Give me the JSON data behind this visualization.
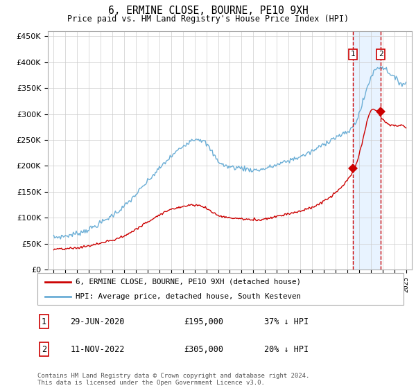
{
  "title": "6, ERMINE CLOSE, BOURNE, PE10 9XH",
  "subtitle": "Price paid vs. HM Land Registry's House Price Index (HPI)",
  "ytick_values": [
    0,
    50000,
    100000,
    150000,
    200000,
    250000,
    300000,
    350000,
    400000,
    450000
  ],
  "ylim": [
    0,
    460000
  ],
  "xlim_start": 1994.5,
  "xlim_end": 2025.5,
  "hpi_color": "#6baed6",
  "price_color": "#cc0000",
  "dashed_color": "#cc0000",
  "shade_color": "#ddeeff",
  "marker1_date": 2020.49,
  "marker2_date": 2022.86,
  "marker1_hpi_price": 195000,
  "marker2_hpi_price": 305000,
  "legend_label1": "6, ERMINE CLOSE, BOURNE, PE10 9XH (detached house)",
  "legend_label2": "HPI: Average price, detached house, South Kesteven",
  "footer": "Contains HM Land Registry data © Crown copyright and database right 2024.\nThis data is licensed under the Open Government Licence v3.0.",
  "xtick_years": [
    1995,
    1996,
    1997,
    1998,
    1999,
    2000,
    2001,
    2002,
    2003,
    2004,
    2005,
    2006,
    2007,
    2008,
    2009,
    2010,
    2011,
    2012,
    2013,
    2014,
    2015,
    2016,
    2017,
    2018,
    2019,
    2020,
    2021,
    2022,
    2023,
    2024,
    2025
  ],
  "hpi_base_years": [
    1995,
    1996,
    1997,
    1998,
    1999,
    2000,
    2001,
    2002,
    2003,
    2004,
    2005,
    2006,
    2007,
    2008,
    2009,
    2010,
    2011,
    2012,
    2013,
    2014,
    2015,
    2016,
    2017,
    2018,
    2019,
    2020,
    2021,
    2022,
    2023,
    2024,
    2025
  ],
  "hpi_base_vals": [
    62000,
    65000,
    70000,
    78000,
    90000,
    105000,
    122000,
    145000,
    170000,
    195000,
    218000,
    238000,
    252000,
    242000,
    210000,
    198000,
    196000,
    192000,
    195000,
    202000,
    210000,
    218000,
    228000,
    242000,
    255000,
    265000,
    300000,
    370000,
    390000,
    370000,
    360000
  ],
  "price_base_years": [
    1995,
    1996,
    1997,
    1998,
    1999,
    2000,
    2001,
    2002,
    2003,
    2004,
    2005,
    2006,
    2007,
    2008,
    2009,
    2010,
    2011,
    2012,
    2013,
    2014,
    2015,
    2016,
    2017,
    2018,
    2019,
    2020,
    2021,
    2022,
    2023,
    2024,
    2025
  ],
  "price_base_vals": [
    39000,
    40000,
    42000,
    46000,
    51000,
    57000,
    65000,
    78000,
    92000,
    106000,
    116000,
    122000,
    125000,
    118000,
    105000,
    100000,
    98000,
    96000,
    98000,
    103000,
    108000,
    113000,
    120000,
    132000,
    148000,
    172000,
    220000,
    305000,
    290000,
    278000,
    275000
  ],
  "hpi_noise_seed": 7,
  "hpi_noise_scale": 2500,
  "price_noise_seed": 13,
  "price_noise_scale": 1200
}
